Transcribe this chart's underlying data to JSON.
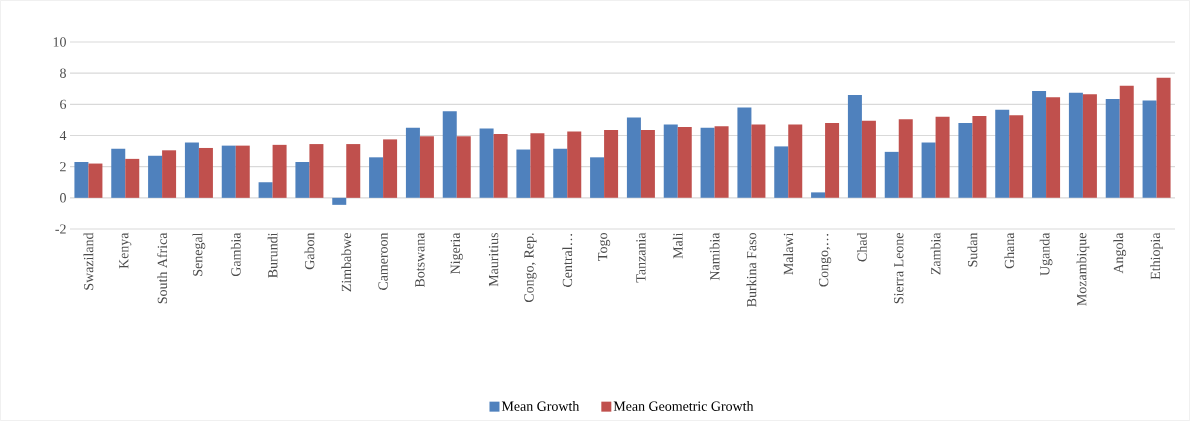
{
  "chart_data": {
    "type": "bar",
    "categories": [
      "Swaziland",
      "Kenya",
      "South Africa",
      "Senegal",
      "Gambia",
      "Burundi",
      "Gabon",
      "Zimbabwe",
      "Cameroon",
      "Botswana",
      "Nigeria",
      "Mauritius",
      "Congo, Rep.",
      "Central…",
      "Togo",
      "Tanzania",
      "Mali",
      "Namibia",
      "Burkina Faso",
      "Malawi",
      "Congo,…",
      "Chad",
      "Sierra Leone",
      "Zambia",
      "Sudan",
      "Ghana",
      "Uganda",
      "Mozambique",
      "Angola",
      "Ethiopia"
    ],
    "series": [
      {
        "name": "Mean Growth",
        "color": "#4f81bd",
        "values": [
          2.3,
          3.15,
          2.7,
          3.55,
          3.35,
          1.0,
          2.3,
          -0.45,
          2.6,
          4.5,
          5.55,
          4.45,
          3.1,
          3.15,
          2.6,
          5.15,
          4.7,
          4.5,
          5.8,
          3.3,
          0.35,
          6.6,
          2.95,
          3.55,
          4.8,
          5.65,
          6.85,
          6.75,
          6.35,
          6.25
        ]
      },
      {
        "name": "Mean Geometric Growth",
        "color": "#c0504d",
        "values": [
          2.2,
          2.5,
          3.05,
          3.2,
          3.35,
          3.4,
          3.45,
          3.45,
          3.75,
          3.95,
          3.95,
          4.1,
          4.15,
          4.25,
          4.35,
          4.35,
          4.55,
          4.6,
          4.7,
          4.7,
          4.8,
          4.95,
          5.05,
          5.2,
          5.25,
          5.3,
          6.45,
          6.65,
          7.2,
          7.7
        ]
      }
    ],
    "ylim": [
      -2,
      10
    ],
    "yticks": [
      -2,
      0,
      2,
      4,
      6,
      8,
      10
    ],
    "grid": "y",
    "legend": "bottom"
  }
}
